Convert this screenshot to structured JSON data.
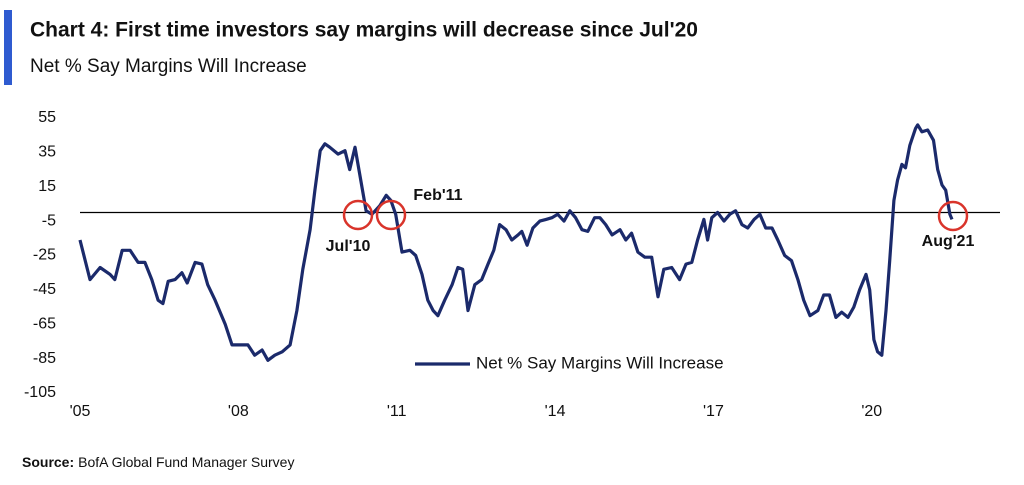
{
  "title": "Chart 4: First time investors say margins will decrease since Jul'20",
  "subtitle": "Net % Say Margins Will Increase",
  "source_label": "Source:",
  "source_text": "BofA Global Fund Manager Survey",
  "chart_data": {
    "type": "line",
    "x": [
      2005,
      2005.19,
      2005.38,
      2005.57,
      2005.66,
      2005.8,
      2005.95,
      2006.1,
      2006.23,
      2006.36,
      2006.48,
      2006.57,
      2006.67,
      2006.8,
      2006.93,
      2007.03,
      2007.18,
      2007.31,
      2007.42,
      2007.56,
      2007.75,
      2007.88,
      2008.03,
      2008.18,
      2008.31,
      2008.45,
      2008.56,
      2008.69,
      2008.83,
      2008.98,
      2009.11,
      2009.22,
      2009.36,
      2009.45,
      2009.55,
      2009.64,
      2009.73,
      2009.89,
      2010.02,
      2010.11,
      2010.21,
      2010.3,
      2010.42,
      2010.53,
      2010.68,
      2010.8,
      2010.89,
      2010.98,
      2011.1,
      2011.25,
      2011.36,
      2011.48,
      2011.59,
      2011.69,
      2011.78,
      2011.91,
      2012.05,
      2012.16,
      2012.25,
      2012.35,
      2012.48,
      2012.61,
      2012.73,
      2012.84,
      2012.95,
      2013.07,
      2013.18,
      2013.3,
      2013.37,
      2013.47,
      2013.58,
      2013.71,
      2013.83,
      2013.94,
      2014.05,
      2014.17,
      2014.28,
      2014.39,
      2014.51,
      2014.62,
      2014.75,
      2014.85,
      2014.96,
      2015.08,
      2015.23,
      2015.34,
      2015.45,
      2015.57,
      2015.7,
      2015.83,
      2015.95,
      2016.06,
      2016.21,
      2016.36,
      2016.48,
      2016.59,
      2016.7,
      2016.82,
      2016.89,
      2016.97,
      2017.08,
      2017.2,
      2017.31,
      2017.42,
      2017.54,
      2017.65,
      2017.77,
      2017.88,
      2017.99,
      2018.11,
      2018.22,
      2018.35,
      2018.48,
      2018.6,
      2018.71,
      2018.83,
      2018.98,
      2019.09,
      2019.2,
      2019.32,
      2019.43,
      2019.55,
      2019.66,
      2019.77,
      2019.89,
      2019.96,
      2020.04,
      2020.11,
      2020.19,
      2020.27,
      2020.34,
      2020.42,
      2020.49,
      2020.57,
      2020.64,
      2020.72,
      2020.83,
      2020.87,
      2020.95,
      2021.06,
      2021.17,
      2021.25,
      2021.33,
      2021.4,
      2021.48,
      2021.52
    ],
    "series": [
      {
        "name": "Net % Say Margins Will Increase",
        "color": "#1b2a6b",
        "values": [
          -16,
          -39,
          -32,
          -36,
          -39,
          -22,
          -22,
          -29,
          -29,
          -39,
          -51,
          -53,
          -40,
          -39,
          -35,
          -41,
          -29,
          -30,
          -42,
          -51,
          -65,
          -77,
          -77,
          -77,
          -83,
          -80,
          -86,
          -83,
          -81,
          -77,
          -57,
          -33,
          -10,
          13,
          36,
          40,
          38,
          34,
          36,
          25,
          38,
          22,
          1,
          -1,
          4,
          10,
          7,
          -1,
          -23,
          -22,
          -25,
          -36,
          -51,
          -57,
          -60,
          -51,
          -42,
          -32,
          -33,
          -57,
          -42,
          -39,
          -30,
          -22,
          -7,
          -10,
          -16,
          -13,
          -11,
          -19,
          -9,
          -5,
          -4,
          -3,
          -1,
          -5,
          1,
          -3,
          -10,
          -11,
          -3,
          -3,
          -7,
          -13,
          -10,
          -16,
          -12,
          -23,
          -26,
          -26,
          -49,
          -33,
          -32,
          -39,
          -30,
          -29,
          -16,
          -4,
          -16,
          -3,
          0,
          -5,
          -1,
          1,
          -7,
          -9,
          -4,
          -1,
          -9,
          -9,
          -16,
          -25,
          -28,
          -39,
          -51,
          -60,
          -57,
          -48,
          -48,
          -61,
          -58,
          -61,
          -55,
          -45,
          -36,
          -45,
          -74,
          -81,
          -83,
          -57,
          -28,
          7,
          19,
          28,
          26,
          39,
          49,
          51,
          47,
          48,
          42,
          25,
          16,
          13,
          -1,
          -4
        ]
      }
    ],
    "xlim": [
      2005,
      2021.52
    ],
    "xticks": [
      {
        "value": 2005,
        "label": "'05"
      },
      {
        "value": 2008,
        "label": "'08"
      },
      {
        "value": 2011,
        "label": "'11"
      },
      {
        "value": 2014,
        "label": "'14"
      },
      {
        "value": 2017,
        "label": "'17"
      },
      {
        "value": 2020,
        "label": "'20"
      }
    ],
    "ylim": [
      -105,
      55
    ],
    "yticks": [
      55,
      35,
      15,
      -5,
      -25,
      -45,
      -65,
      -85,
      -105
    ],
    "reference_line": 0,
    "annotations": [
      "Jul'10",
      "Feb'11",
      "Aug'21"
    ],
    "annotation_color": "#d9342b",
    "legend": "inside-bottom"
  }
}
